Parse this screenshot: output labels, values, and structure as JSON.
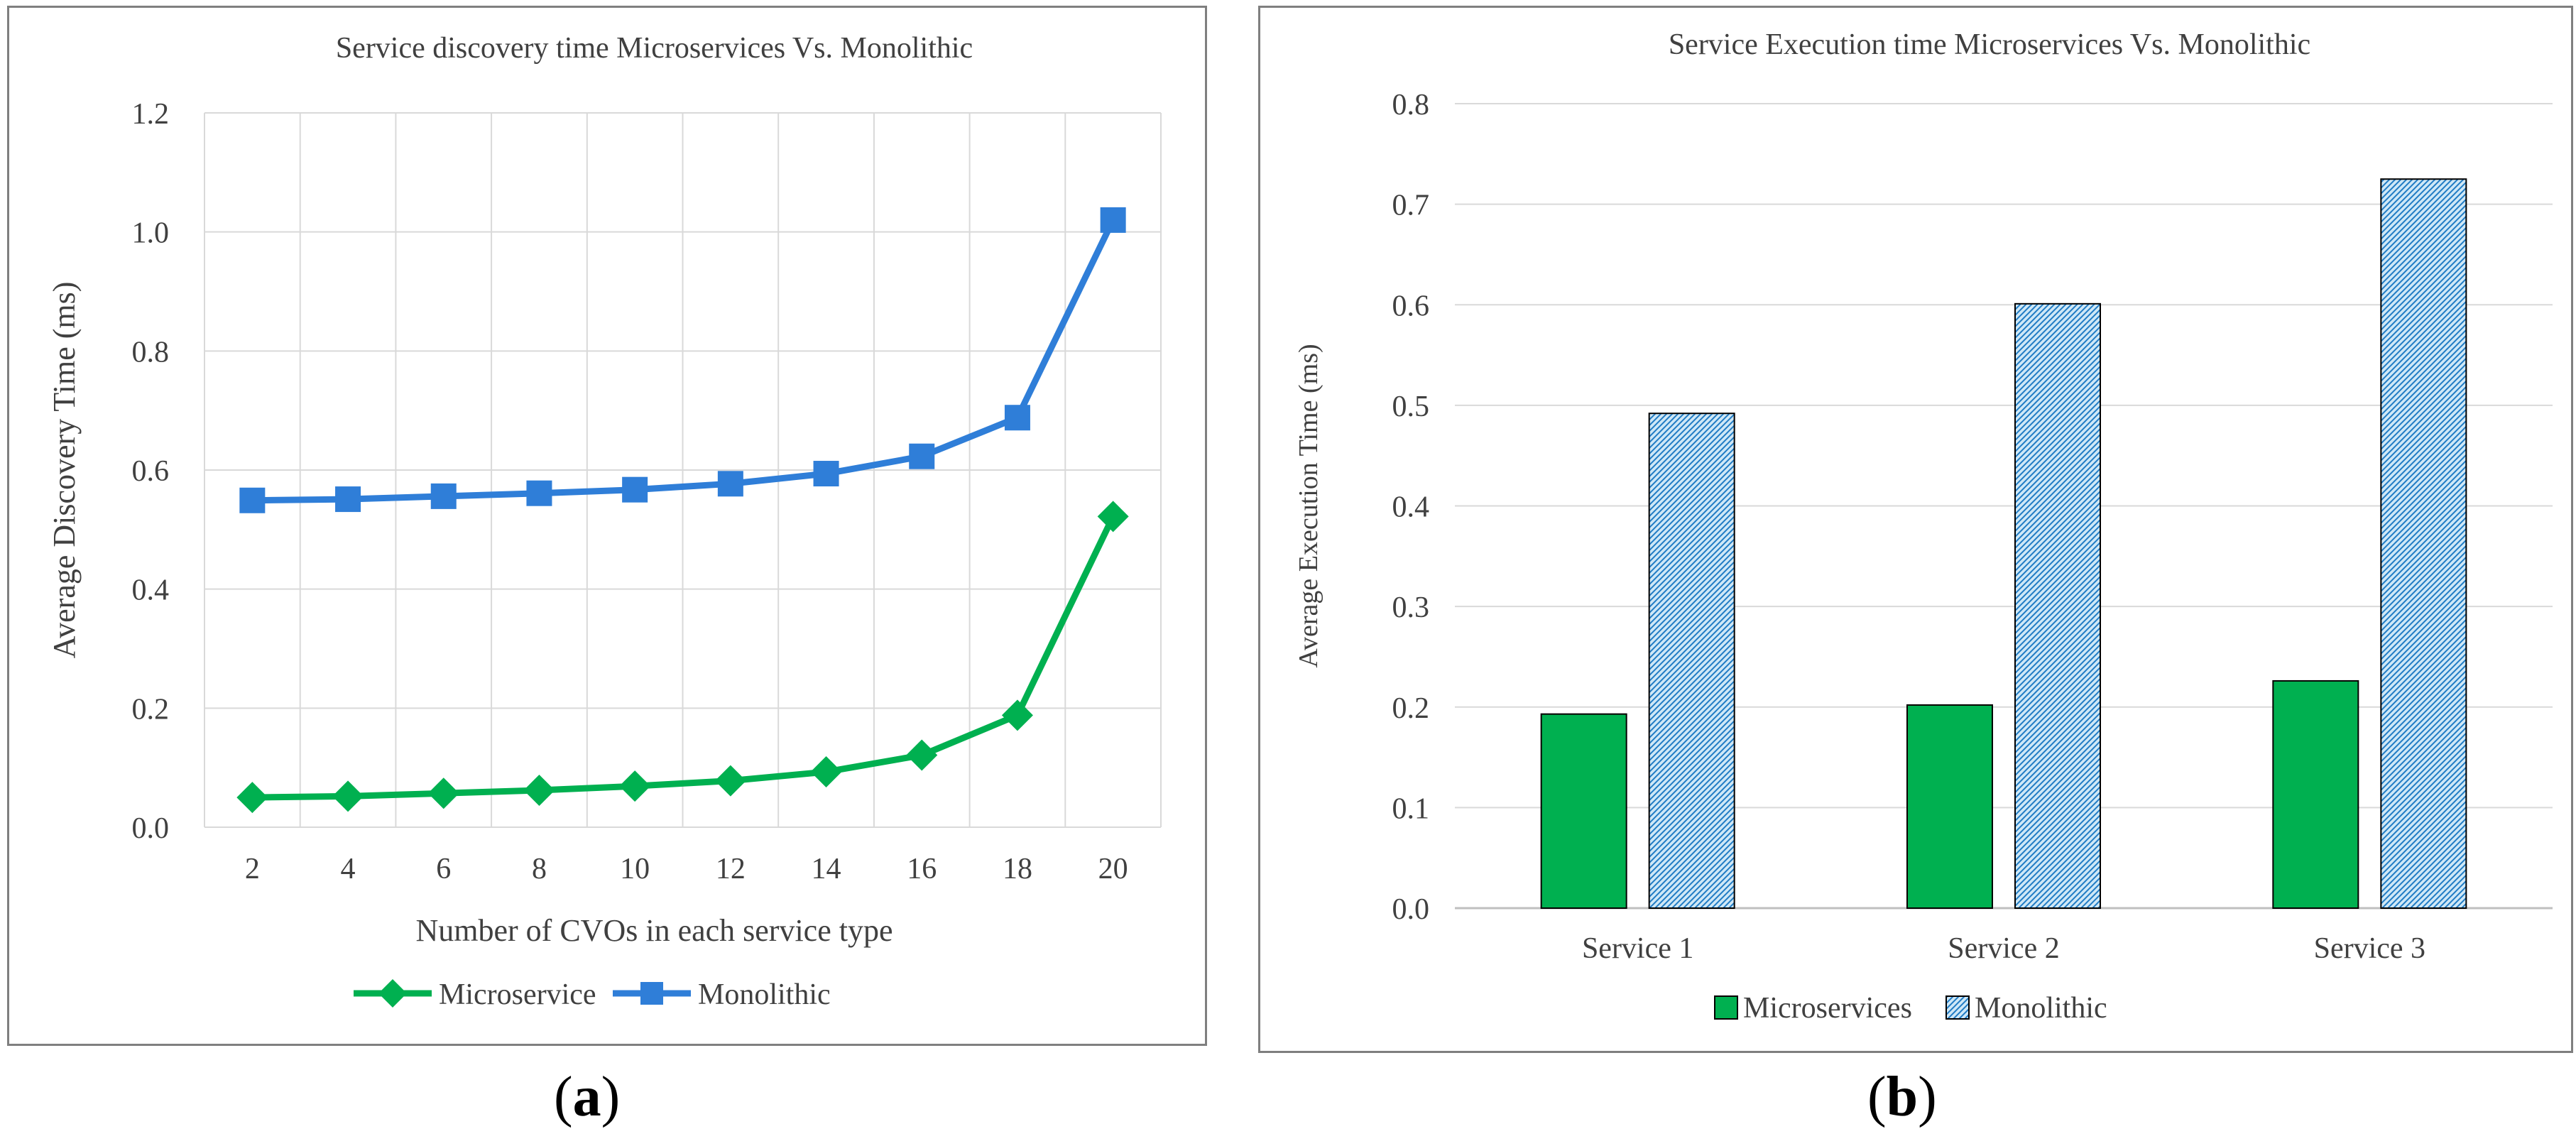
{
  "chart_data": [
    {
      "type": "line",
      "title": "Service discovery time Microservices Vs. Monolithic",
      "xlabel": "Number of CVOs in each service type",
      "ylabel": "Average  Discovery Time (ms)",
      "x": [
        2,
        4,
        6,
        8,
        10,
        12,
        14,
        16,
        18,
        20
      ],
      "x_tick_labels": [
        "2",
        "4",
        "6",
        "8",
        "10",
        "12",
        "14",
        "16",
        "18",
        "20"
      ],
      "ylim": [
        0,
        1.2
      ],
      "y_ticks": [
        0.0,
        0.2,
        0.4,
        0.6,
        0.8,
        1.0,
        1.2
      ],
      "y_tick_labels": [
        "0.0",
        "0.2",
        "0.4",
        "0.6",
        "0.8",
        "1.0",
        "1.2"
      ],
      "grid": true,
      "legend_position": "bottom",
      "series": [
        {
          "name": "Microservice",
          "color": "#00b050",
          "marker": "diamond",
          "values": [
            0.05,
            0.052,
            0.057,
            0.062,
            0.069,
            0.078,
            0.093,
            0.121,
            0.188,
            0.522
          ]
        },
        {
          "name": "Monolithic",
          "color": "#2f7ed8",
          "marker": "square",
          "values": [
            0.549,
            0.551,
            0.556,
            0.561,
            0.567,
            0.577,
            0.594,
            0.623,
            0.688,
            1.02
          ]
        }
      ]
    },
    {
      "type": "bar",
      "title": "Service Execution time  Microservices Vs. Monolithic",
      "xlabel": "",
      "ylabel": "Average Execution Time (ms)",
      "categories": [
        "Service 1",
        "Service 2",
        "Service 3"
      ],
      "ylim": [
        0,
        0.8
      ],
      "y_ticks": [
        0.0,
        0.1,
        0.2,
        0.3,
        0.4,
        0.5,
        0.6,
        0.7,
        0.8
      ],
      "y_tick_labels": [
        "0.0",
        "0.1",
        "0.2",
        "0.3",
        "0.4",
        "0.5",
        "0.6",
        "0.7",
        "0.8"
      ],
      "grid": true,
      "legend_position": "bottom",
      "series": [
        {
          "name": "Microservices",
          "color": "#00b050",
          "fill": "solid",
          "values": [
            0.193,
            0.202,
            0.226
          ]
        },
        {
          "name": "Monolithic",
          "color": "#9fd0ee",
          "fill": "hatched",
          "values": [
            0.492,
            0.601,
            0.725
          ]
        }
      ]
    }
  ],
  "panel_labels": {
    "a": "a",
    "b": "b"
  }
}
